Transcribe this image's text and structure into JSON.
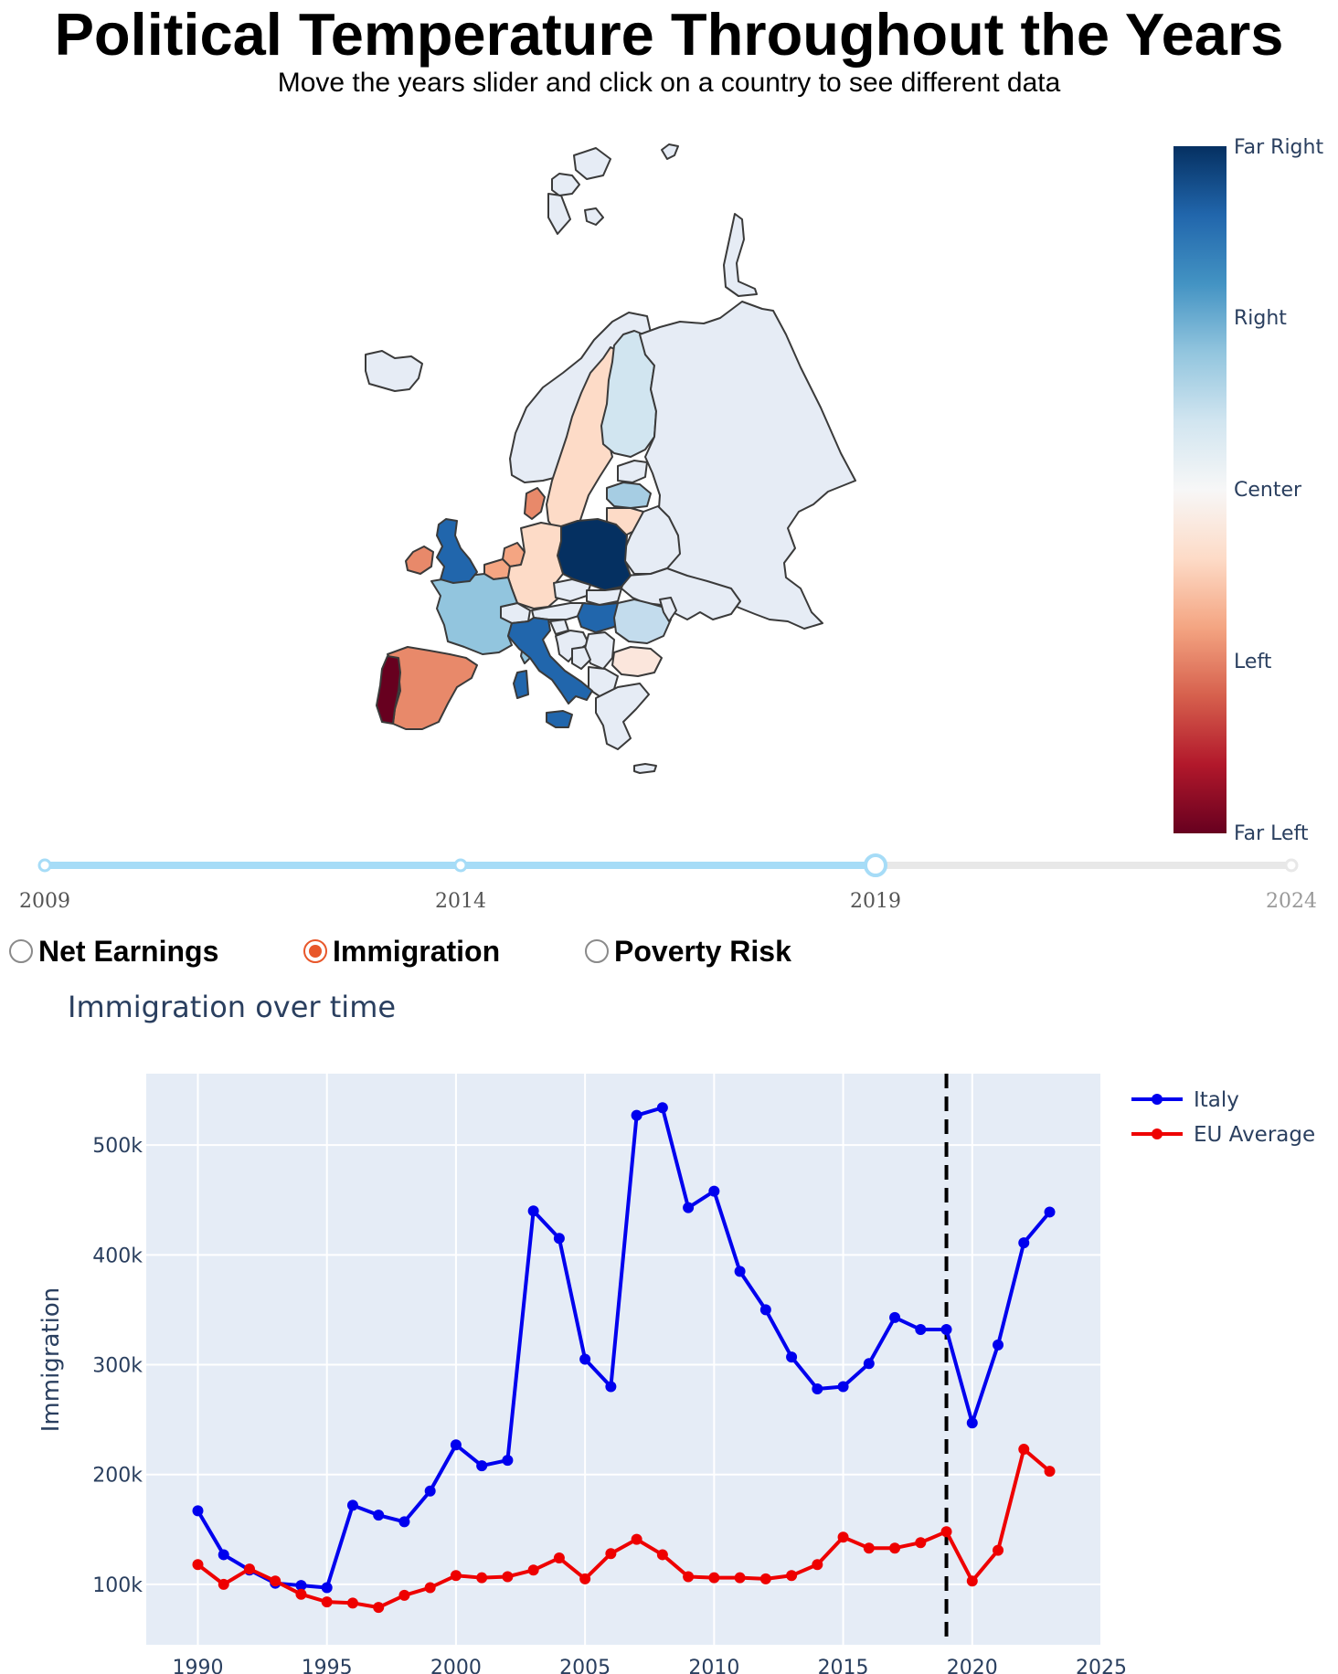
{
  "header": {
    "title": "Political Temperature Throughout the Years",
    "subtitle": "Move the years slider and click on a country to see different data"
  },
  "map": {
    "colorbar": {
      "labels": [
        "Far Right",
        "Right",
        "Center",
        "Left",
        "Far Left"
      ],
      "colors": [
        "#053061",
        "#2166ac",
        "#4393c3",
        "#92c5de",
        "#d1e5f0",
        "#f7f7f7",
        "#fddbc7",
        "#f4a582",
        "#d6604d",
        "#b2182b",
        "#67001f"
      ]
    },
    "countries": [
      {
        "name": "Portugal",
        "color": "#67001f"
      },
      {
        "name": "Spain",
        "color": "#e8896a"
      },
      {
        "name": "France",
        "color": "#92c5de"
      },
      {
        "name": "United Kingdom",
        "color": "#2166ac"
      },
      {
        "name": "Ireland",
        "color": "#e8896a"
      },
      {
        "name": "Italy",
        "color": "#2166ac"
      },
      {
        "name": "Germany",
        "color": "#fddbc7"
      },
      {
        "name": "Poland",
        "color": "#053061"
      },
      {
        "name": "Sweden",
        "color": "#fddbc7"
      },
      {
        "name": "Norway",
        "color": "#e6ecf5"
      },
      {
        "name": "Finland",
        "color": "#d1e5f0"
      },
      {
        "name": "Denmark",
        "color": "#e8896a"
      },
      {
        "name": "Iceland",
        "color": "#e6ecf5"
      },
      {
        "name": "Russia",
        "color": "#e6ecf5"
      },
      {
        "name": "Hungary",
        "color": "#2166ac"
      },
      {
        "name": "Romania",
        "color": "#c3dced"
      },
      {
        "name": "Bulgaria",
        "color": "#fbe6dc"
      },
      {
        "name": "Lithuania",
        "color": "#fddbc7"
      },
      {
        "name": "Latvia",
        "color": "#a6cde3"
      },
      {
        "name": "Netherlands",
        "color": "#f4a582"
      },
      {
        "name": "Belarus",
        "color": "#e6ecf5"
      },
      {
        "name": "Ukraine",
        "color": "#e6ecf5"
      }
    ]
  },
  "slider": {
    "ticks": [
      "2009",
      "2014",
      "2019",
      "2024"
    ],
    "selected": "2019",
    "active_color": "#a6dcf7",
    "inactive_color": "#e8e8e8"
  },
  "metric_selector": {
    "options": [
      {
        "label": "Net Earnings",
        "checked": false
      },
      {
        "label": "Immigration",
        "checked": true
      },
      {
        "label": "Poverty Risk",
        "checked": false
      }
    ]
  },
  "chart_data": {
    "type": "line",
    "title": "Immigration over time",
    "xlabel": "",
    "ylabel": "Immigration",
    "xlim": [
      1988,
      2025
    ],
    "ylim": [
      45000,
      565000
    ],
    "xticks": [
      1990,
      1995,
      2000,
      2005,
      2010,
      2015,
      2020,
      2025
    ],
    "yticks": [
      100000,
      200000,
      300000,
      400000,
      500000
    ],
    "ytick_labels": [
      "100k",
      "200k",
      "300k",
      "400k",
      "500k"
    ],
    "grid": true,
    "legend": "top-right",
    "marker_line_x": 2019,
    "x": [
      1990,
      1991,
      1992,
      1993,
      1994,
      1995,
      1996,
      1997,
      1998,
      1999,
      2000,
      2001,
      2002,
      2003,
      2004,
      2005,
      2006,
      2007,
      2008,
      2009,
      2010,
      2011,
      2012,
      2013,
      2014,
      2015,
      2016,
      2017,
      2018,
      2019,
      2020,
      2021,
      2022,
      2023
    ],
    "series": [
      {
        "name": "Italy",
        "color": "#0000ee",
        "values": [
          167000,
          127000,
          113000,
          101000,
          99000,
          97000,
          172000,
          163000,
          157000,
          185000,
          227000,
          208000,
          213000,
          440000,
          415000,
          305000,
          280000,
          527000,
          534000,
          443000,
          458000,
          385000,
          350000,
          307000,
          278000,
          280000,
          301000,
          343000,
          332000,
          332000,
          247000,
          318000,
          411000,
          439000
        ]
      },
      {
        "name": "EU Average",
        "color": "#ee0000",
        "values": [
          118000,
          100000,
          114000,
          103000,
          91000,
          84000,
          83000,
          79000,
          90000,
          97000,
          108000,
          106000,
          107000,
          113000,
          124000,
          105000,
          128000,
          141000,
          127000,
          107000,
          106000,
          106000,
          105000,
          108000,
          118000,
          143000,
          133000,
          133000,
          138000,
          148000,
          103000,
          131000,
          223000,
          203000
        ]
      }
    ]
  }
}
